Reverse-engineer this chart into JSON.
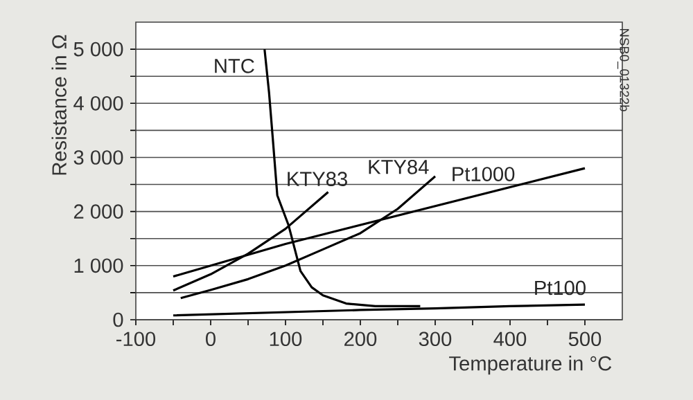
{
  "chart_data": {
    "type": "line",
    "xlabel": "Temperature in °C",
    "ylabel": "Resistance in Ω",
    "annotations": [
      "NSB0_01322b"
    ],
    "xlim": [
      -100,
      550
    ],
    "ylim": [
      0,
      5500
    ],
    "xticks": [
      -100,
      {
        "value": -50,
        "label": null
      },
      0,
      {
        "value": 50,
        "label": null
      },
      100,
      {
        "value": 150,
        "label": null
      },
      200,
      {
        "value": 250,
        "label": null
      },
      300,
      {
        "value": 350,
        "label": null
      },
      400,
      {
        "value": 450,
        "label": null
      },
      500
    ],
    "yticks": [
      0,
      {
        "value": 500,
        "label": null
      },
      {
        "value": 1000,
        "label": "1 000"
      },
      {
        "value": 1500,
        "label": null
      },
      {
        "value": 2000,
        "label": "2 000"
      },
      {
        "value": 2500,
        "label": null
      },
      {
        "value": 3000,
        "label": "3 000"
      },
      {
        "value": 3500,
        "label": null
      },
      {
        "value": 4000,
        "label": "4 000"
      },
      {
        "value": 4500,
        "label": null
      },
      {
        "value": 5000,
        "label": "5 000"
      }
    ],
    "grid": "y",
    "marker": "none",
    "line_style": "solid",
    "series": [
      {
        "name": "NTC",
        "color": "#000000",
        "x": [
          72,
          78,
          83,
          89,
          104,
          120,
          135,
          150,
          181,
          220,
          280
        ],
        "values": [
          5000,
          4200,
          3350,
          2300,
          1750,
          900,
          600,
          450,
          300,
          250,
          250
        ]
      },
      {
        "name": "KTY83",
        "color": "#000000",
        "x": [
          -50,
          0,
          50,
          100,
          157
        ],
        "values": [
          540,
          840,
          1220,
          1680,
          2360
        ]
      },
      {
        "name": "KTY84",
        "color": "#000000",
        "x": [
          -40,
          0,
          50,
          100,
          150,
          200,
          250,
          300
        ],
        "values": [
          400,
          550,
          750,
          1000,
          1300,
          1600,
          2050,
          2650
        ]
      },
      {
        "name": "Pt1000",
        "color": "#000000",
        "x": [
          -50,
          0,
          100,
          200,
          300,
          400,
          500
        ],
        "values": [
          800,
          1000,
          1400,
          1750,
          2100,
          2450,
          2800
        ]
      },
      {
        "name": "Pt100",
        "color": "#000000",
        "x": [
          -50,
          0,
          100,
          200,
          300,
          400,
          500
        ],
        "values": [
          80,
          100,
          140,
          180,
          210,
          250,
          280
        ]
      }
    ]
  }
}
